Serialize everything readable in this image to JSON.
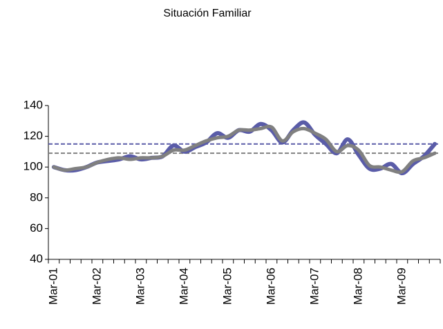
{
  "chart_data": {
    "type": "line",
    "title": "Situación Familiar",
    "categories": [
      "Mar-01",
      null,
      null,
      null,
      "Mar-02",
      null,
      null,
      null,
      "Mar-03",
      null,
      null,
      null,
      "Mar-04",
      null,
      null,
      null,
      "Mar-05",
      null,
      null,
      null,
      "Mar-06",
      null,
      null,
      null,
      "Mar-07",
      null,
      null,
      null,
      "Mar-08",
      null,
      null,
      null,
      "Mar-09",
      null,
      null,
      null
    ],
    "series": [
      {
        "color": "#5a5ca8",
        "values": [
          100,
          98,
          98,
          100,
          103,
          104,
          105,
          107,
          105,
          106,
          107,
          114,
          110,
          113,
          116,
          122,
          119,
          124,
          123,
          128,
          124,
          116,
          124,
          129,
          121,
          115,
          109,
          118,
          108,
          99,
          99,
          102,
          96,
          102,
          107,
          115
        ]
      },
      {
        "color": "#808080",
        "values": [
          100,
          98,
          99,
          100,
          103,
          105,
          106,
          105,
          106,
          106,
          107,
          111,
          111,
          114,
          117,
          119,
          120,
          124,
          124,
          125,
          126,
          117,
          123,
          125,
          122,
          118,
          110,
          114,
          111,
          101,
          100,
          98,
          97,
          104,
          106,
          109
        ]
      }
    ],
    "reference_lines": [
      {
        "value": 115,
        "color": "#5a5ca8"
      },
      {
        "value": 109,
        "color": "#808080"
      }
    ],
    "ylim": [
      40,
      140
    ],
    "yticks": [
      40,
      60,
      80,
      100,
      120,
      140
    ]
  }
}
